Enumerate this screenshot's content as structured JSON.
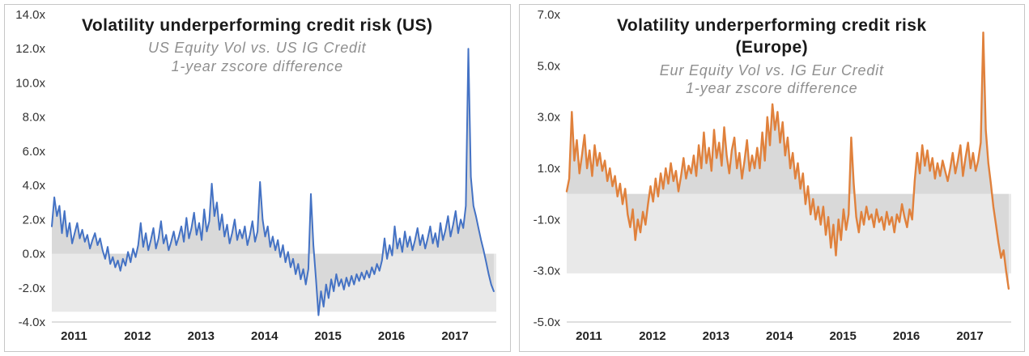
{
  "figure": {
    "border_color": "#c6c6c6",
    "background": "#ffffff"
  },
  "chart_data": [
    {
      "type": "line",
      "title": "Volatility underperforming credit risk (US)",
      "subtitle": [
        "US Equity Vol  vs. US IG Credit",
        "1-year zscore difference"
      ],
      "xlabel": "",
      "ylabel": "",
      "legend": "none",
      "grid": "off",
      "line_color": "#4472C4",
      "line_width": 2,
      "area_color": "#d9d9d9",
      "band": {
        "from": 0,
        "to": -3.4,
        "color": "#e9e9e9"
      },
      "xlim": [
        2011,
        2018
      ],
      "ylim": [
        -4,
        14
      ],
      "xticks": [
        2011,
        2012,
        2013,
        2014,
        2015,
        2016,
        2017
      ],
      "ytick_values": [
        14,
        12,
        10,
        8,
        6,
        4,
        2,
        0,
        -2,
        -4
      ],
      "ytick_labels": [
        "14.0x",
        "12.0x",
        "10.0x",
        "8.0x",
        "6.0x",
        "4.0x",
        "2.0x",
        "0.0x",
        "-2.0x",
        "-4.0x"
      ],
      "x_start": 2011.0,
      "x_step": 0.04,
      "values": [
        1.6,
        3.3,
        2.2,
        2.8,
        1.2,
        2.5,
        1.0,
        1.8,
        0.6,
        1.2,
        1.8,
        0.9,
        1.4,
        0.7,
        1.1,
        0.3,
        0.8,
        1.2,
        0.5,
        0.9,
        0.2,
        -0.3,
        0.4,
        -0.6,
        -0.2,
        -0.8,
        -0.4,
        -1.0,
        -0.3,
        -0.7,
        0.1,
        -0.5,
        0.3,
        -0.2,
        0.5,
        1.8,
        0.4,
        1.2,
        0.2,
        0.8,
        1.5,
        0.3,
        0.9,
        1.9,
        0.6,
        1.1,
        0.2,
        0.7,
        1.3,
        0.5,
        1.0,
        1.6,
        0.7,
        2.1,
        0.9,
        1.5,
        2.4,
        1.1,
        1.8,
        0.8,
        2.6,
        1.3,
        1.9,
        4.1,
        2.2,
        3.0,
        1.4,
        2.3,
        1.0,
        1.7,
        0.6,
        1.2,
        2.0,
        0.8,
        1.4,
        0.9,
        1.6,
        0.5,
        1.1,
        1.9,
        0.7,
        1.3,
        4.2,
        2.0,
        1.0,
        1.6,
        0.4,
        1.0,
        0.2,
        0.8,
        -0.2,
        0.5,
        -0.5,
        0.1,
        -0.8,
        -0.3,
        -1.2,
        -0.6,
        -1.5,
        -0.9,
        -1.8,
        -0.9,
        3.5,
        0.5,
        -1.5,
        -3.6,
        -2.2,
        -3.1,
        -1.8,
        -2.6,
        -1.5,
        -2.2,
        -1.2,
        -1.9,
        -1.5,
        -2.1,
        -1.4,
        -1.9,
        -1.3,
        -1.8,
        -1.2,
        -1.6,
        -1.1,
        -1.5,
        -1.0,
        -1.4,
        -0.8,
        -1.2,
        -0.6,
        -1.0,
        -0.4,
        0.9,
        -0.3,
        0.5,
        -0.1,
        1.6,
        0.3,
        0.9,
        0.1,
        1.3,
        0.4,
        1.0,
        0.2,
        0.8,
        1.5,
        0.5,
        1.1,
        0.3,
        0.9,
        1.6,
        0.6,
        1.2,
        0.4,
        1.8,
        0.8,
        1.4,
        2.2,
        1.0,
        1.7,
        2.5,
        1.2,
        2.0,
        1.5,
        2.8,
        12.0,
        4.5,
        2.8,
        2.2,
        1.5,
        0.8,
        0.2,
        -0.5,
        -1.2,
        -1.8,
        -2.2
      ]
    },
    {
      "type": "line",
      "title": "Volatility underperforming credit risk (Europe)",
      "subtitle": [
        "Eur Equity Vol vs. IG Eur Credit",
        "1-year zscore difference"
      ],
      "xlabel": "",
      "ylabel": "",
      "legend": "none",
      "grid": "off",
      "line_color": "#E0813C",
      "line_width": 2.4,
      "area_color": "#d9d9d9",
      "band": {
        "from": 0,
        "to": -3.1,
        "color": "#e9e9e9"
      },
      "xlim": [
        2011,
        2018
      ],
      "ylim": [
        -5,
        7
      ],
      "xticks": [
        2011,
        2012,
        2013,
        2014,
        2015,
        2016,
        2017
      ],
      "ytick_values": [
        7,
        5,
        3,
        1,
        -1,
        -3,
        -5
      ],
      "ytick_labels": [
        "7.0x",
        "5.0x",
        "3.0x",
        "1.0x",
        "-1.0x",
        "-3.0x",
        "-5.0x"
      ],
      "x_start": 2011.0,
      "x_step": 0.04,
      "values": [
        0.1,
        0.6,
        3.2,
        1.3,
        2.1,
        0.8,
        1.5,
        2.3,
        1.0,
        1.7,
        0.7,
        1.9,
        1.1,
        1.6,
        0.9,
        1.3,
        0.5,
        1.0,
        0.3,
        0.7,
        -0.1,
        0.4,
        -0.4,
        0.2,
        -0.8,
        -1.3,
        -0.6,
        -1.8,
        -1.0,
        -1.5,
        -0.7,
        -1.2,
        -0.4,
        0.3,
        -0.3,
        0.6,
        -0.1,
        0.8,
        0.2,
        1.0,
        0.4,
        1.2,
        0.5,
        0.9,
        0.1,
        0.7,
        1.4,
        0.6,
        1.1,
        0.8,
        1.5,
        0.7,
        1.9,
        1.0,
        2.4,
        1.2,
        1.8,
        0.9,
        2.5,
        1.4,
        2.0,
        1.1,
        2.6,
        1.5,
        0.8,
        1.7,
        2.2,
        1.0,
        1.6,
        0.6,
        1.3,
        2.1,
        0.9,
        1.5,
        1.0,
        1.8,
        1.0,
        2.4,
        1.3,
        3.0,
        1.9,
        3.5,
        2.5,
        3.2,
        2.0,
        2.8,
        1.5,
        2.2,
        1.0,
        1.6,
        0.6,
        1.2,
        0.2,
        0.8,
        -0.4,
        0.3,
        -0.8,
        -0.2,
        -1.0,
        -0.5,
        -1.2,
        -0.5,
        -1.6,
        -0.9,
        -2.1,
        -1.2,
        -2.4,
        -1.0,
        -1.8,
        -0.6,
        -1.4,
        -0.8,
        2.2,
        0.4,
        -0.9,
        -1.5,
        -0.7,
        -1.2,
        -0.5,
        -1.0,
        -0.8,
        -1.3,
        -0.6,
        -1.1,
        -0.9,
        -1.4,
        -0.7,
        -1.2,
        -0.9,
        -1.5,
        -0.8,
        -1.1,
        -0.4,
        -0.9,
        -1.3,
        -0.6,
        -1.0,
        0.5,
        1.6,
        0.8,
        1.9,
        1.1,
        1.7,
        0.9,
        1.4,
        0.6,
        1.2,
        0.7,
        1.3,
        0.9,
        0.5,
        1.0,
        1.6,
        0.8,
        1.3,
        1.9,
        0.7,
        1.4,
        2.0,
        1.0,
        1.6,
        0.9,
        1.3,
        2.0,
        6.3,
        2.5,
        1.2,
        0.4,
        -0.5,
        -1.2,
        -1.9,
        -2.5,
        -2.2,
        -3.0,
        -3.7
      ]
    }
  ]
}
